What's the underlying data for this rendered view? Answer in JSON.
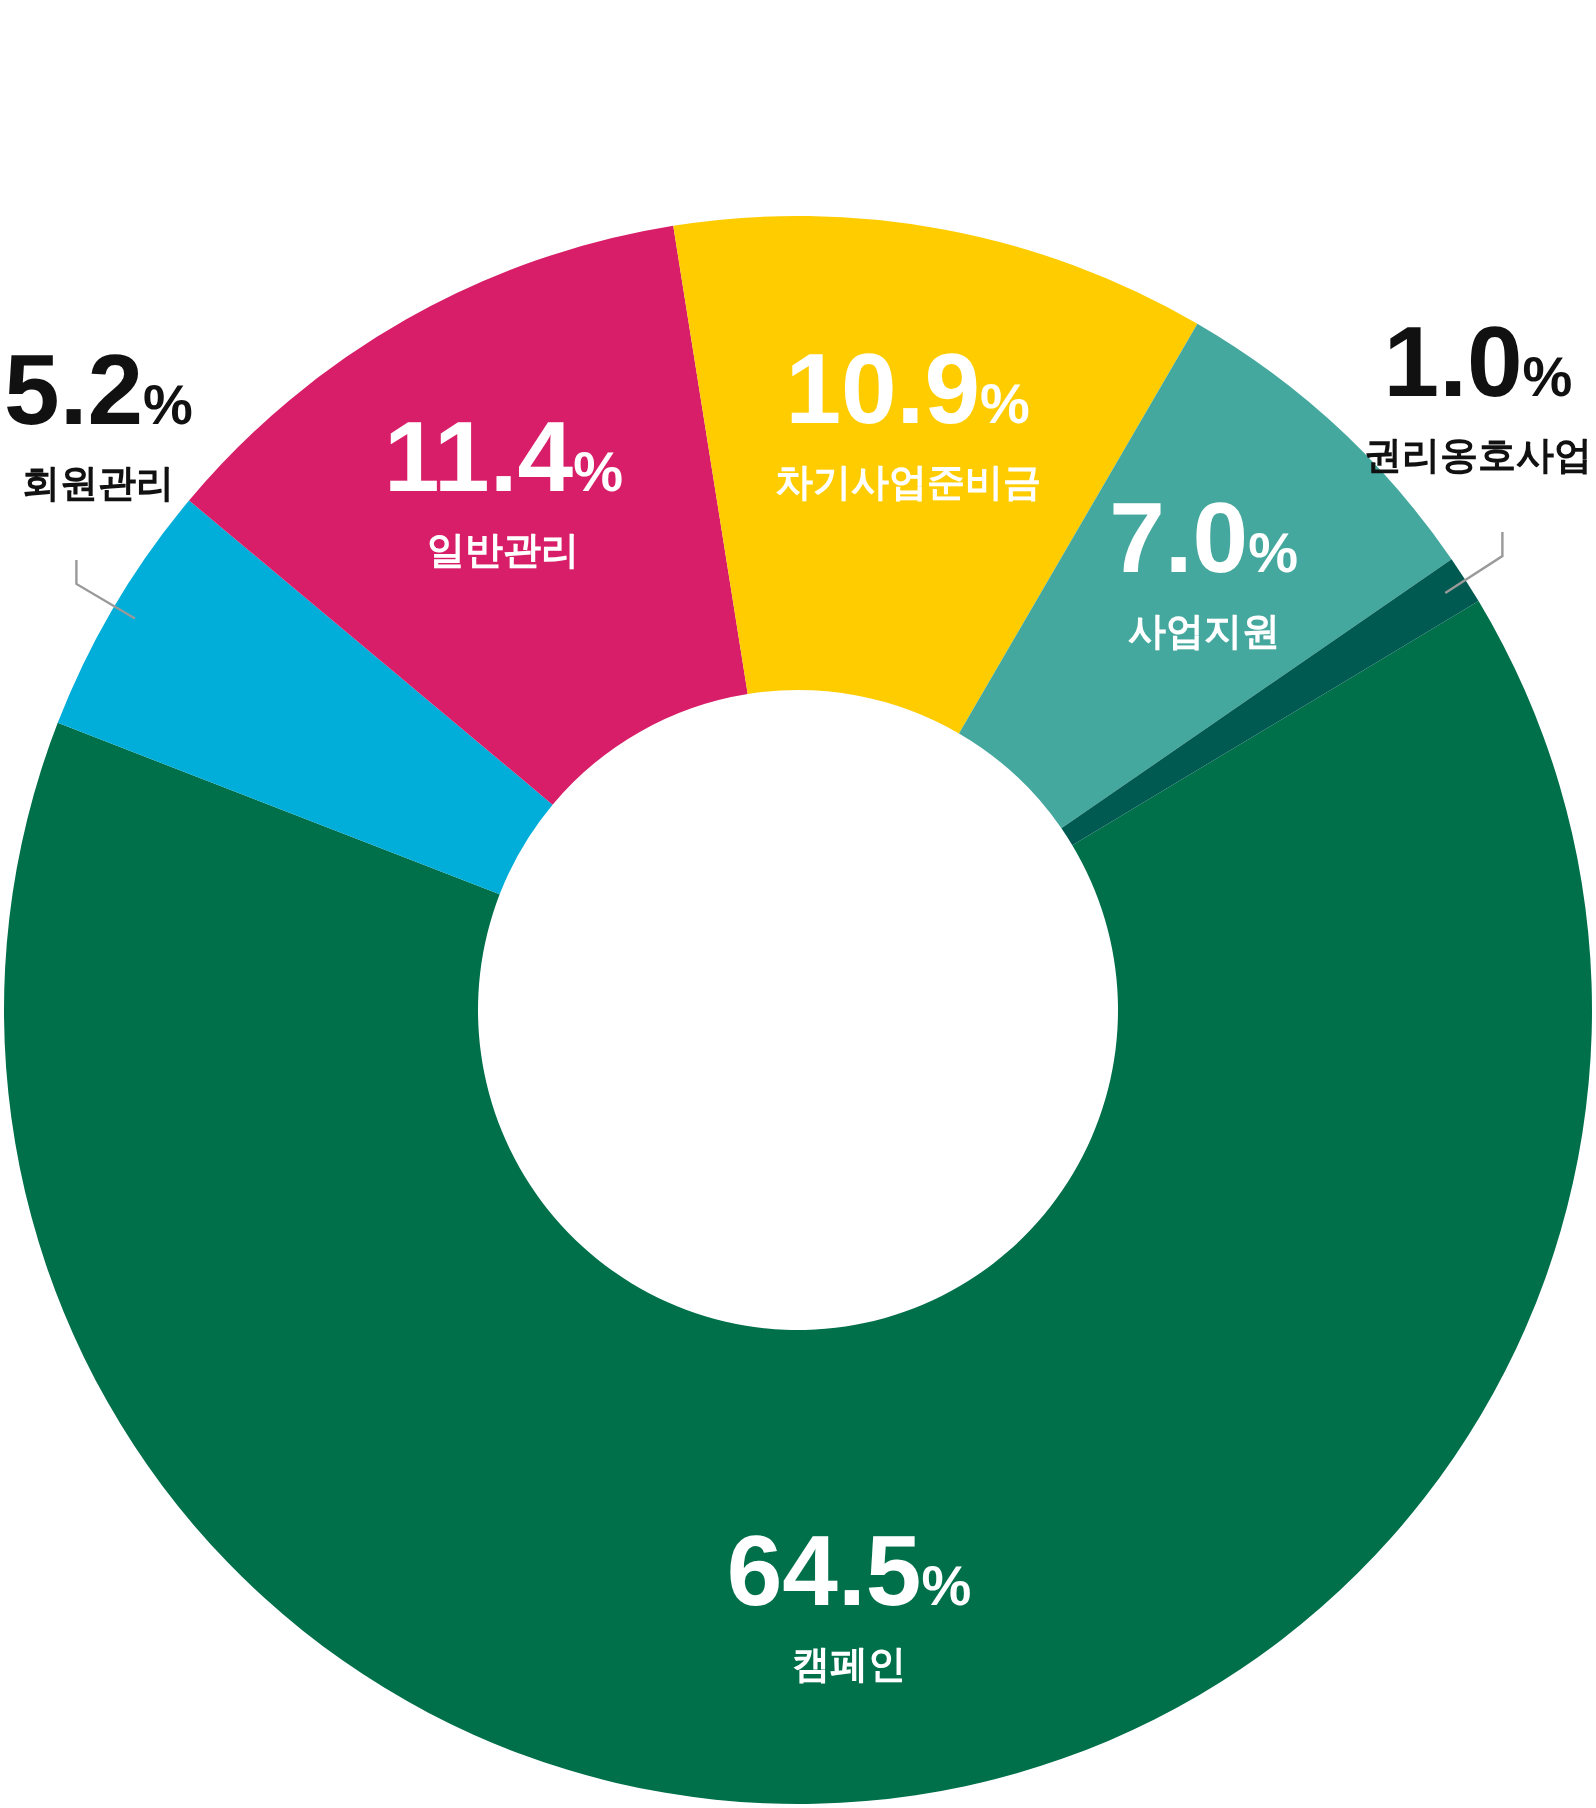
{
  "chart_data": {
    "type": "donut",
    "categories": [
      "캠페인",
      "회원관리",
      "일반관리",
      "차기사업준비금",
      "사업지원",
      "권리옹호사업"
    ],
    "values": [
      64.5,
      5.2,
      11.4,
      10.9,
      7.0,
      1.0
    ],
    "colors": [
      "#00704a",
      "#00aed9",
      "#d81e68",
      "#ffcc00",
      "#45a89e",
      "#005a52"
    ],
    "value_labels": [
      "64.5%",
      "5.2%",
      "11.4%",
      "10.9%",
      "7.0%",
      "1.0%"
    ]
  }
}
